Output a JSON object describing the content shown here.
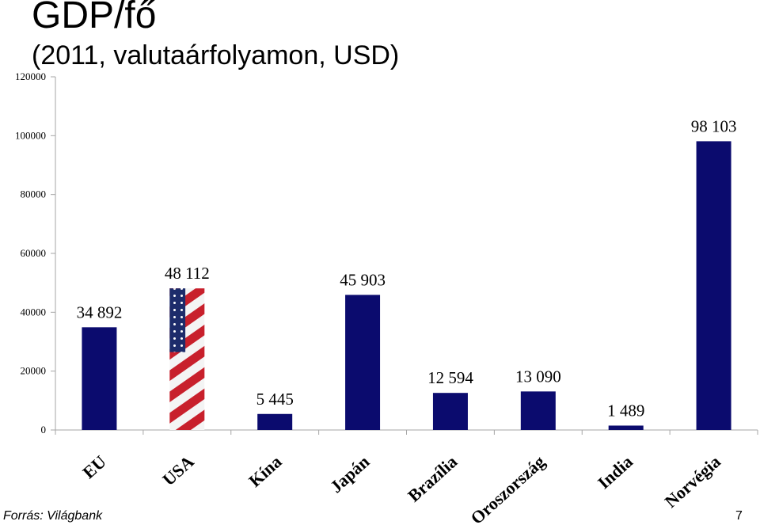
{
  "header": {
    "title": "GDP/fő",
    "subtitle": "(2011, valutaárfolyamon, USD)"
  },
  "footer": {
    "source": "Forrás: Világbank",
    "page_number": "7"
  },
  "colors": {
    "bar": "#0b0b6e",
    "axis": "#a6a6a6"
  },
  "chart_data": {
    "type": "bar",
    "categories": [
      "EU",
      "USA",
      "Kína",
      "Japán",
      "Brazília",
      "Oroszország",
      "India",
      "Norvégia"
    ],
    "values": [
      34892,
      48112,
      5445,
      45903,
      12594,
      13090,
      1489,
      98103
    ],
    "data_labels": [
      "34 892",
      "48 112",
      "5 445",
      "45 903",
      "12 594",
      "13 090",
      "1 489",
      "98 103"
    ],
    "ylim": [
      0,
      120000
    ],
    "yticks": [
      0,
      20000,
      40000,
      60000,
      80000,
      100000,
      120000
    ],
    "ytick_labels": [
      "0",
      "20000",
      "40000",
      "60000",
      "80000",
      "100000",
      "120000"
    ],
    "grid": false,
    "legend": "none",
    "highlight": {
      "category": "USA",
      "fill": "american-flag-image"
    }
  }
}
